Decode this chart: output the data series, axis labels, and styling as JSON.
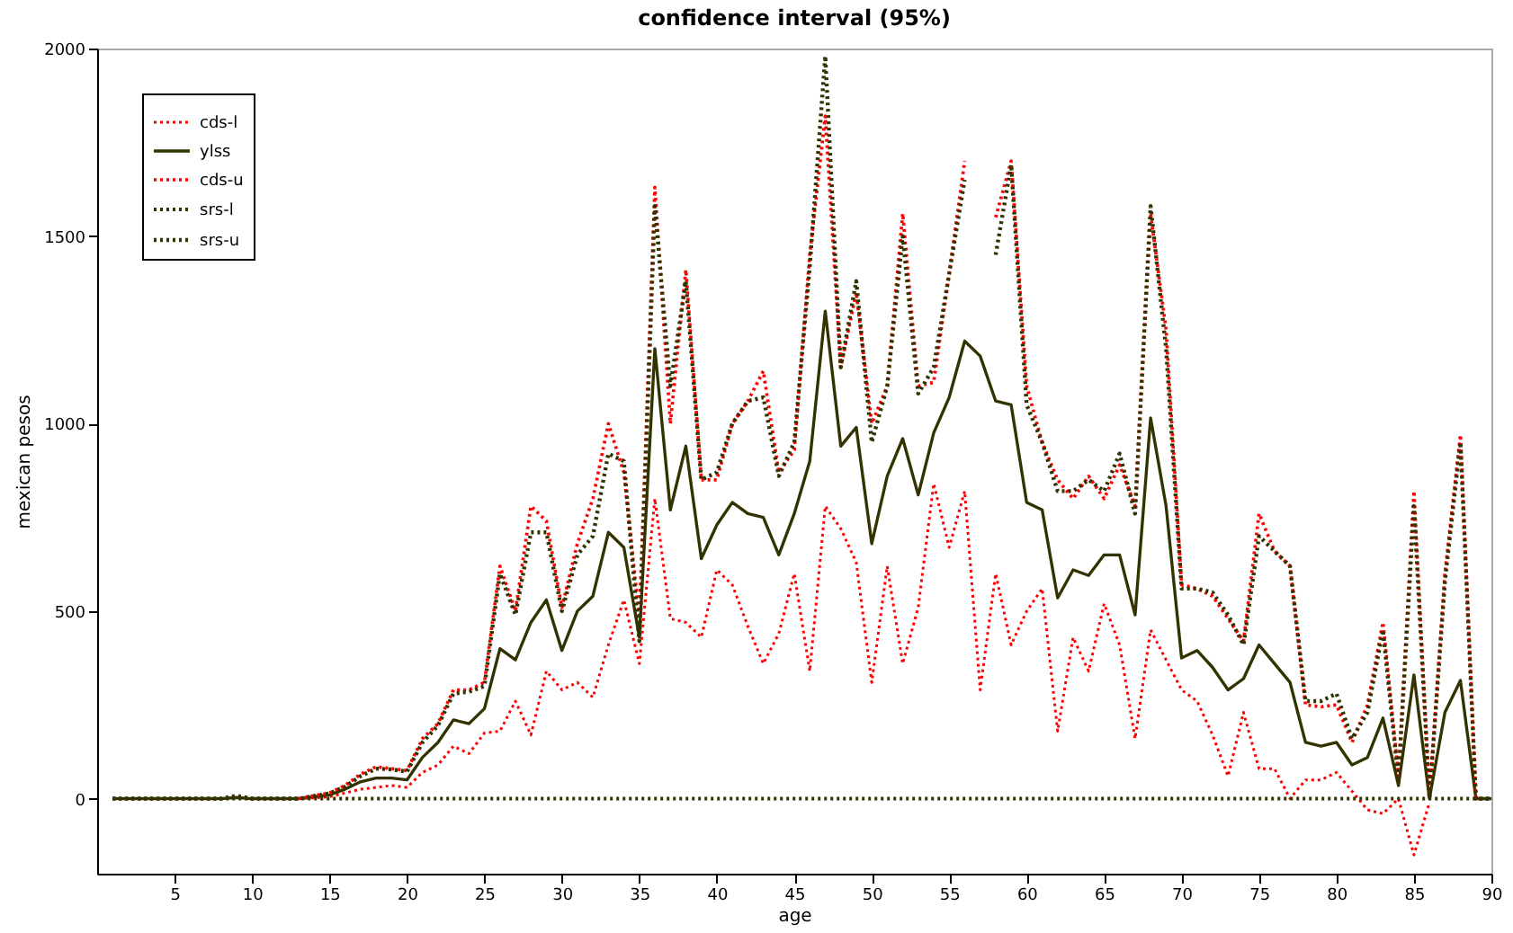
{
  "chart_data": {
    "type": "line",
    "title": "confidence interval (95%)",
    "xlabel": "age",
    "ylabel": "mexican pesos",
    "x": [
      1,
      2,
      3,
      4,
      5,
      6,
      7,
      8,
      9,
      10,
      11,
      12,
      13,
      14,
      15,
      16,
      17,
      18,
      19,
      20,
      21,
      22,
      23,
      24,
      25,
      26,
      27,
      28,
      29,
      30,
      31,
      32,
      33,
      34,
      35,
      36,
      37,
      38,
      39,
      40,
      41,
      42,
      43,
      44,
      45,
      46,
      47,
      48,
      49,
      50,
      51,
      52,
      53,
      54,
      55,
      56,
      57,
      58,
      59,
      60,
      61,
      62,
      63,
      64,
      65,
      66,
      67,
      68,
      69,
      70,
      71,
      72,
      73,
      74,
      75,
      76,
      77,
      78,
      79,
      80,
      81,
      82,
      83,
      84,
      85,
      86,
      87,
      88,
      89,
      90
    ],
    "series": [
      {
        "name": "cds-l",
        "color": "#ff0000",
        "line_style": "dotted",
        "values": [
          null,
          null,
          null,
          null,
          null,
          null,
          null,
          null,
          null,
          null,
          null,
          null,
          0,
          2,
          5,
          15,
          25,
          30,
          35,
          30,
          70,
          90,
          140,
          120,
          175,
          180,
          260,
          170,
          340,
          290,
          310,
          270,
          410,
          530,
          360,
          800,
          480,
          470,
          430,
          610,
          570,
          460,
          360,
          440,
          600,
          340,
          780,
          720,
          630,
          310,
          620,
          360,
          510,
          840,
          670,
          820,
          290,
          600,
          410,
          500,
          560,
          180,
          430,
          340,
          520,
          410,
          160,
          450,
          370,
          290,
          260,
          170,
          60,
          230,
          80,
          80,
          0,
          50,
          50,
          70,
          20,
          -30,
          -40,
          0,
          -150,
          -10,
          null,
          null,
          0,
          0
        ]
      },
      {
        "name": "ylss",
        "color": "#333300",
        "line_style": "solid",
        "values": [
          0,
          0,
          0,
          0,
          0,
          0,
          0,
          0,
          3,
          0,
          0,
          0,
          0,
          5,
          10,
          25,
          45,
          55,
          55,
          50,
          110,
          150,
          210,
          200,
          240,
          400,
          370,
          470,
          530,
          395,
          500,
          540,
          710,
          670,
          430,
          1200,
          770,
          940,
          640,
          730,
          790,
          760,
          750,
          650,
          760,
          900,
          1300,
          940,
          990,
          680,
          860,
          960,
          810,
          975,
          1070,
          1220,
          1180,
          1060,
          1050,
          790,
          770,
          535,
          610,
          595,
          650,
          650,
          490,
          1015,
          780,
          375,
          395,
          350,
          290,
          320,
          410,
          360,
          310,
          150,
          140,
          150,
          90,
          110,
          215,
          35,
          330,
          0,
          230,
          315,
          0,
          0
        ]
      },
      {
        "name": "cds-u",
        "color": "#ff0000",
        "line_style": "dotted",
        "values": [
          null,
          null,
          null,
          null,
          null,
          null,
          null,
          null,
          null,
          null,
          null,
          null,
          0,
          8,
          15,
          35,
          65,
          85,
          80,
          75,
          160,
          200,
          290,
          290,
          310,
          620,
          500,
          780,
          740,
          510,
          680,
          800,
          1000,
          870,
          480,
          1630,
          1000,
          1410,
          850,
          850,
          1000,
          1060,
          1140,
          870,
          930,
          1450,
          1820,
          1150,
          1350,
          1000,
          1100,
          1560,
          1100,
          1110,
          1400,
          1700,
          null,
          1550,
          1700,
          1100,
          950,
          850,
          800,
          860,
          800,
          890,
          780,
          1560,
          1250,
          570,
          560,
          540,
          480,
          420,
          760,
          660,
          620,
          250,
          245,
          250,
          150,
          250,
          470,
          60,
          820,
          0,
          600,
          970,
          0,
          0
        ]
      },
      {
        "name": "srs-l",
        "color": "#333300",
        "line_style": "dotted",
        "values": [
          0,
          0,
          0,
          0,
          0,
          0,
          0,
          0,
          0,
          0,
          0,
          0,
          0,
          0,
          0,
          0,
          0,
          0,
          0,
          0,
          0,
          0,
          0,
          0,
          0,
          0,
          0,
          0,
          0,
          0,
          0,
          0,
          0,
          0,
          0,
          0,
          0,
          0,
          0,
          0,
          0,
          0,
          0,
          0,
          0,
          0,
          0,
          0,
          0,
          0,
          0,
          0,
          0,
          0,
          0,
          0,
          0,
          0,
          0,
          0,
          0,
          0,
          0,
          0,
          0,
          0,
          0,
          0,
          0,
          0,
          0,
          0,
          0,
          0,
          0,
          0,
          0,
          0,
          0,
          0,
          0,
          0,
          0,
          0,
          0,
          0,
          0,
          0,
          0,
          0
        ]
      },
      {
        "name": "srs-u",
        "color": "#333300",
        "line_style": "dotted",
        "values": [
          0,
          0,
          0,
          0,
          0,
          0,
          0,
          0,
          8,
          0,
          0,
          0,
          0,
          7,
          14,
          32,
          60,
          80,
          78,
          72,
          150,
          195,
          280,
          285,
          300,
          600,
          490,
          710,
          710,
          500,
          650,
          700,
          920,
          900,
          420,
          1580,
          1100,
          1380,
          850,
          870,
          1000,
          1060,
          1070,
          860,
          950,
          1420,
          1980,
          1150,
          1380,
          950,
          1100,
          1500,
          1080,
          1150,
          1400,
          1650,
          null,
          1450,
          1690,
          1050,
          950,
          820,
          820,
          850,
          820,
          920,
          760,
          1580,
          1200,
          560,
          560,
          550,
          490,
          410,
          700,
          660,
          620,
          260,
          260,
          280,
          160,
          230,
          450,
          50,
          780,
          0,
          580,
          950,
          0,
          0
        ]
      }
    ],
    "xlim": [
      0,
      90
    ],
    "xticks": [
      5,
      10,
      15,
      20,
      25,
      30,
      35,
      40,
      45,
      50,
      55,
      60,
      65,
      70,
      75,
      80,
      85,
      90
    ],
    "ylim": [
      -200,
      2000
    ],
    "yticks": [
      0,
      500,
      1000,
      1500,
      2000
    ],
    "grid": false,
    "legend": "top left",
    "marker": "none"
  }
}
